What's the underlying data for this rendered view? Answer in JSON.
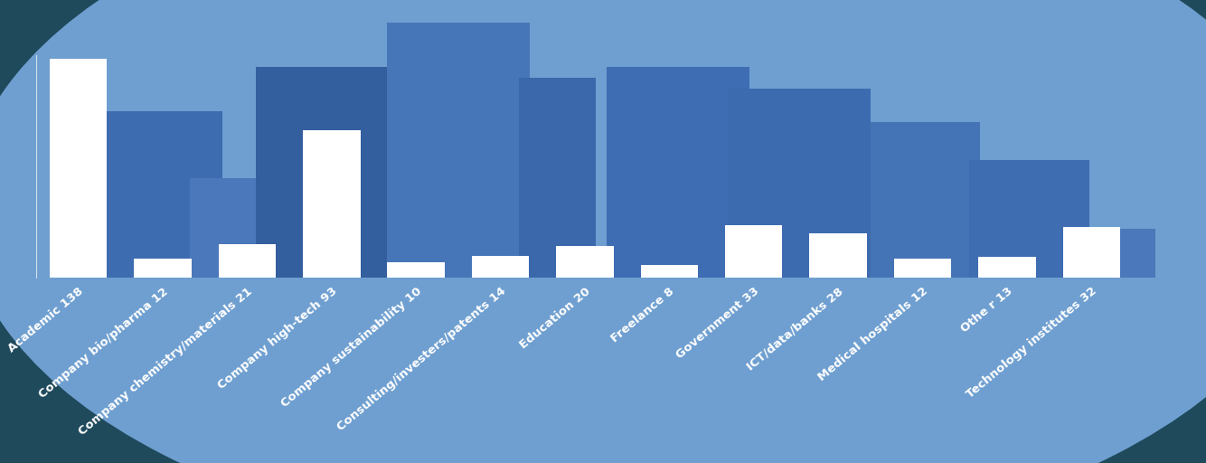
{
  "chart_data": {
    "type": "bar",
    "categories": [
      "Academic 138",
      "Company bio/pharma 12",
      "Company chemistry/materials 21",
      "Company high-tech 93",
      "Company sustainability 10",
      "Consulting/investers/patents 14",
      "Education 20",
      "Freelance 8",
      "Government 33",
      "ICT/data/banks 28",
      "Medical hospitals 12",
      "Othe r 13",
      "Technology institutes 32"
    ],
    "values": [
      138,
      12,
      21,
      93,
      10,
      14,
      20,
      8,
      33,
      28,
      12,
      13,
      32
    ],
    "color": "#ffffff",
    "ylim": [
      0,
      140
    ],
    "yticks": [],
    "tick_labels": "x",
    "grid": false
  }
}
